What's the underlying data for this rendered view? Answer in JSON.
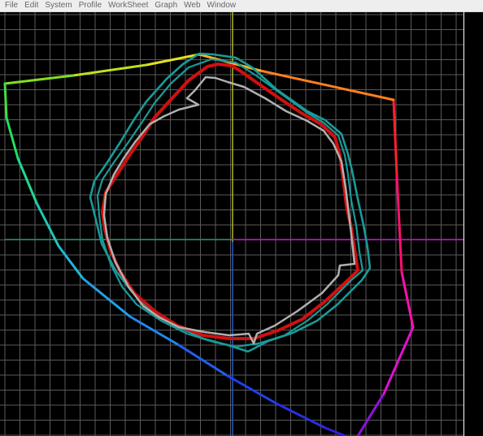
{
  "menu": [
    "File",
    "Edit",
    "System",
    "Profile",
    "WorkSheet",
    "Graph",
    "Web",
    "Window"
  ],
  "colors": {
    "background": "#000000",
    "grid": "#5a5a5a",
    "right_border": "#ffffff",
    "vertical_axis_top": "#c8c020",
    "vertical_axis_bottom": "#2a5fd0",
    "horizontal_axis_left": "#1f8a6a",
    "horizontal_axis_right": "#c010c0",
    "gamut_teal": "#1a9a98",
    "gamut_red": "#d01010",
    "gamut_gray": "#b0b0b0"
  },
  "gamut_curves": [
    "spectral-locus-rainbow",
    "outer-teal",
    "inner-teal",
    "red",
    "gray"
  ]
}
